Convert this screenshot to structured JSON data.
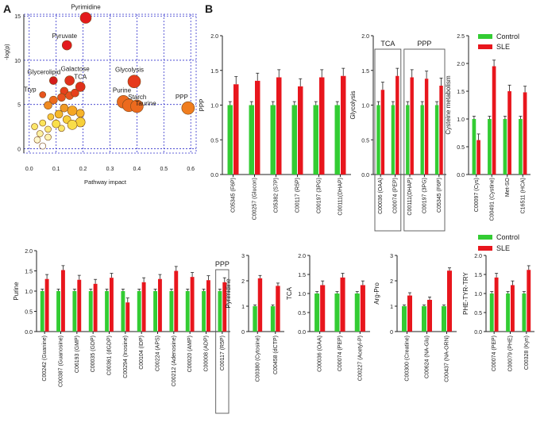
{
  "figure": {
    "panel_a_label": "A",
    "panel_b_label": "B"
  },
  "colors": {
    "control": "#33cc33",
    "sle": "#e8161d",
    "grid": "#3333cc"
  },
  "legend": {
    "control": "Control",
    "sle": "SLE"
  },
  "chart_data": [
    {
      "id": "pathway",
      "type": "scatter",
      "title": "",
      "xlabel": "Pathway impact",
      "ylabel": "-log(p)",
      "xlim": [
        -0.02,
        0.62
      ],
      "ylim": [
        -0.5,
        15.2
      ],
      "xticks": [
        "0.0",
        "0.1",
        "0.2",
        "0.3",
        "0.4",
        "0.5",
        "0.6"
      ],
      "yticks": [
        "0",
        "5",
        "10",
        "15"
      ],
      "points": [
        {
          "x": 0.21,
          "y": 14.8,
          "r": 7,
          "color": "#e31a1c",
          "label": "Pyrimidine"
        },
        {
          "x": 0.14,
          "y": 11.7,
          "r": 6,
          "color": "#e31a1c",
          "label": "Pyruvate"
        },
        {
          "x": 0.09,
          "y": 7.7,
          "r": 5,
          "color": "#d41c1c",
          "label": "Glycerolipid"
        },
        {
          "x": 0.15,
          "y": 7.7,
          "r": 6,
          "color": "#e0301c",
          "label": "Galactose"
        },
        {
          "x": 0.19,
          "y": 7.0,
          "r": 6,
          "color": "#e0301c",
          "label": "TCA"
        },
        {
          "x": 0.39,
          "y": 7.6,
          "r": 8,
          "color": "#e63a1c",
          "label": "Glycolysis"
        },
        {
          "x": 0.05,
          "y": 6.1,
          "r": 4,
          "color": "#e8541e",
          "label": "Tryp"
        },
        {
          "x": 0.35,
          "y": 5.3,
          "r": 8,
          "color": "#ec6a1e",
          "label": "Purine"
        },
        {
          "x": 0.37,
          "y": 4.9,
          "r": 8,
          "color": "#ec6a1e",
          "label": "Starch"
        },
        {
          "x": 0.4,
          "y": 4.8,
          "r": 8,
          "color": "#ec6a1e",
          "label": "Taurine"
        },
        {
          "x": 0.59,
          "y": 4.6,
          "r": 8,
          "color": "#f07d1e",
          "label": "PPP"
        },
        {
          "x": 0.13,
          "y": 6.5,
          "r": 5,
          "color": "#e6401c",
          "label": ""
        },
        {
          "x": 0.15,
          "y": 6.0,
          "r": 5,
          "color": "#e8501e",
          "label": ""
        },
        {
          "x": 0.12,
          "y": 5.8,
          "r": 5,
          "color": "#e8501e",
          "label": ""
        },
        {
          "x": 0.17,
          "y": 6.3,
          "r": 5,
          "color": "#e6401c",
          "label": ""
        },
        {
          "x": 0.09,
          "y": 5.5,
          "r": 5,
          "color": "#ec6a1e",
          "label": ""
        },
        {
          "x": 0.07,
          "y": 4.9,
          "r": 5,
          "color": "#ef8b22",
          "label": ""
        },
        {
          "x": 0.13,
          "y": 4.6,
          "r": 5,
          "color": "#f09a26",
          "label": ""
        },
        {
          "x": 0.16,
          "y": 4.3,
          "r": 6,
          "color": "#f5a623",
          "label": ""
        },
        {
          "x": 0.19,
          "y": 4.0,
          "r": 5,
          "color": "#f7b52b",
          "label": ""
        },
        {
          "x": 0.11,
          "y": 3.9,
          "r": 5,
          "color": "#f5b82a",
          "label": ""
        },
        {
          "x": 0.08,
          "y": 3.6,
          "r": 4,
          "color": "#f9c83a",
          "label": ""
        },
        {
          "x": 0.14,
          "y": 3.3,
          "r": 5,
          "color": "#f7cf3a",
          "label": ""
        },
        {
          "x": 0.19,
          "y": 3.0,
          "r": 6,
          "color": "#f7d03a",
          "label": ""
        },
        {
          "x": 0.16,
          "y": 2.7,
          "r": 6,
          "color": "#f9dd4a",
          "label": ""
        },
        {
          "x": 0.1,
          "y": 2.8,
          "r": 5,
          "color": "#f9e04a",
          "label": ""
        },
        {
          "x": 0.05,
          "y": 2.9,
          "r": 4,
          "color": "#fbe45a",
          "label": ""
        },
        {
          "x": 0.02,
          "y": 2.5,
          "r": 4,
          "color": "#fbe66a",
          "label": ""
        },
        {
          "x": 0.07,
          "y": 2.2,
          "r": 4,
          "color": "#fbe87a",
          "label": ""
        },
        {
          "x": 0.12,
          "y": 2.3,
          "r": 4,
          "color": "#fbe66a",
          "label": ""
        },
        {
          "x": 0.04,
          "y": 1.7,
          "r": 4,
          "color": "#fdf0a0",
          "label": ""
        },
        {
          "x": 0.07,
          "y": 1.3,
          "r": 4,
          "color": "#fdf2b0",
          "label": ""
        },
        {
          "x": 0.03,
          "y": 1.0,
          "r": 4,
          "color": "#fff7cc",
          "label": ""
        },
        {
          "x": 0.05,
          "y": 0.3,
          "r": 4,
          "color": "#ffffff",
          "label": ""
        }
      ]
    },
    {
      "id": "ppp",
      "type": "bar",
      "ylabel": "PPP",
      "ylim": [
        0,
        2
      ],
      "yticks": [
        "0.0",
        "0.5",
        "1.0",
        "1.5",
        "2.0"
      ],
      "series_names": [
        "Control",
        "SLE"
      ],
      "categories": [
        "C05345 (F6P)",
        "C00257 (Glucon)",
        "C05382 (S7P)",
        "C00117 (R5P)",
        "C00197 (3PG)",
        "C00111(DHAP)"
      ],
      "control": [
        1.0,
        1.0,
        1.0,
        1.0,
        1.0,
        1.0
      ],
      "sle": [
        1.3,
        1.35,
        1.4,
        1.27,
        1.4,
        1.42
      ]
    },
    {
      "id": "glycolysis",
      "type": "bar",
      "ylabel": "Glycolysis",
      "ylim": [
        0,
        2
      ],
      "yticks": [
        "0.0",
        "0.5",
        "1.0",
        "1.5",
        "2.0"
      ],
      "series_names": [
        "Control",
        "SLE"
      ],
      "categories": [
        "C00036 (OAA)",
        "C00074 (PEP)",
        "C00111(DHAP)",
        "C00197 (3PG)",
        "C05345 (F6P)"
      ],
      "control": [
        1.0,
        1.0,
        1.0,
        1.0,
        1.0
      ],
      "sle": [
        1.22,
        1.42,
        1.4,
        1.38,
        1.28
      ],
      "groups": [
        {
          "label": "TCA",
          "start": 0,
          "end": 1
        },
        {
          "label": "PPP",
          "start": 2,
          "end": 4
        }
      ]
    },
    {
      "id": "cysteine",
      "type": "bar",
      "ylabel": "Cysteine metabolism",
      "ylim": [
        0,
        2.5
      ],
      "yticks": [
        "0.0",
        "0.5",
        "1.0",
        "1.5",
        "2.0",
        "2.5"
      ],
      "series_names": [
        "Control",
        "SLE"
      ],
      "categories": [
        "C00097 (Cys)",
        "C00491 (Cystine)",
        "Met-SO",
        "C16511 (HCA)"
      ],
      "control": [
        1.0,
        1.0,
        1.0,
        1.0
      ],
      "sle": [
        0.62,
        1.95,
        1.5,
        1.48
      ]
    },
    {
      "id": "purine",
      "type": "bar",
      "ylabel": "Purine",
      "ylim": [
        0,
        2
      ],
      "yticks": [
        "0.0",
        "0.5",
        "1.0",
        "1.5",
        "2.0"
      ],
      "series_names": [
        "Control",
        "SLE"
      ],
      "categories": [
        "C00242 (Guanine)",
        "C00387 (Guanosine)",
        "C06193 (GMP)",
        "C00035 (GDP)",
        "C00361 (dGDP)",
        "C00294 (Inosine)",
        "C00104 (IDP)",
        "C00224 (APS)",
        "C00212 (Adenosine)",
        "C00020 (AMP)",
        "C00008 (ADP)",
        "C00117 (R5P)"
      ],
      "control": [
        1.0,
        1.0,
        1.0,
        1.0,
        1.0,
        1.0,
        1.0,
        1.0,
        1.0,
        1.0,
        1.0,
        1.0
      ],
      "sle": [
        1.3,
        1.52,
        1.28,
        1.18,
        1.33,
        0.72,
        1.22,
        1.3,
        1.5,
        1.35,
        1.27,
        1.22
      ],
      "groups": [
        {
          "label": "PPP",
          "start": 11,
          "end": 11
        }
      ]
    },
    {
      "id": "pyrimidine",
      "type": "bar",
      "ylabel": "Pyrimidine",
      "ylim": [
        0,
        3
      ],
      "yticks": [
        "0",
        "1",
        "2",
        "3"
      ],
      "series_names": [
        "Control",
        "SLE"
      ],
      "categories": [
        "C00380 (Cytosine)",
        "C00458 (dCTP)"
      ],
      "control": [
        1.0,
        1.0
      ],
      "sle": [
        2.1,
        1.8
      ]
    },
    {
      "id": "tca",
      "type": "bar",
      "ylabel": "TCA",
      "ylim": [
        0,
        2
      ],
      "yticks": [
        "0.0",
        "0.5",
        "1.0",
        "1.5",
        "2.0"
      ],
      "series_names": [
        "Control",
        "SLE"
      ],
      "categories": [
        "C00036 (OAA)",
        "C00074 (PEP)",
        "C00227 (Acetyl-P)"
      ],
      "control": [
        1.0,
        1.0,
        1.0
      ],
      "sle": [
        1.22,
        1.42,
        1.22
      ]
    },
    {
      "id": "argpro",
      "type": "bar",
      "ylabel": "Arg-Pro",
      "ylim": [
        0,
        3
      ],
      "yticks": [
        "0",
        "1",
        "2",
        "3"
      ],
      "series_names": [
        "Control",
        "SLE"
      ],
      "categories": [
        "C00300 (Creatine)",
        "C00624 (NA-Glu)",
        "C00437 (NA-ORN)"
      ],
      "control": [
        1.0,
        1.0,
        1.0
      ],
      "sle": [
        1.42,
        1.25,
        2.4
      ]
    },
    {
      "id": "phetyr",
      "type": "bar",
      "ylabel": "PHE-TYR-TRY",
      "ylim": [
        0,
        2
      ],
      "yticks": [
        "0.0",
        "0.5",
        "1.0",
        "1.5",
        "2.0"
      ],
      "series_names": [
        "Control",
        "SLE"
      ],
      "categories": [
        "C00074 (PEP)",
        "C00079 (PHE)",
        "C00328 (Kyn)"
      ],
      "control": [
        1.0,
        1.0,
        1.0
      ],
      "sle": [
        1.42,
        1.22,
        1.62
      ]
    }
  ]
}
